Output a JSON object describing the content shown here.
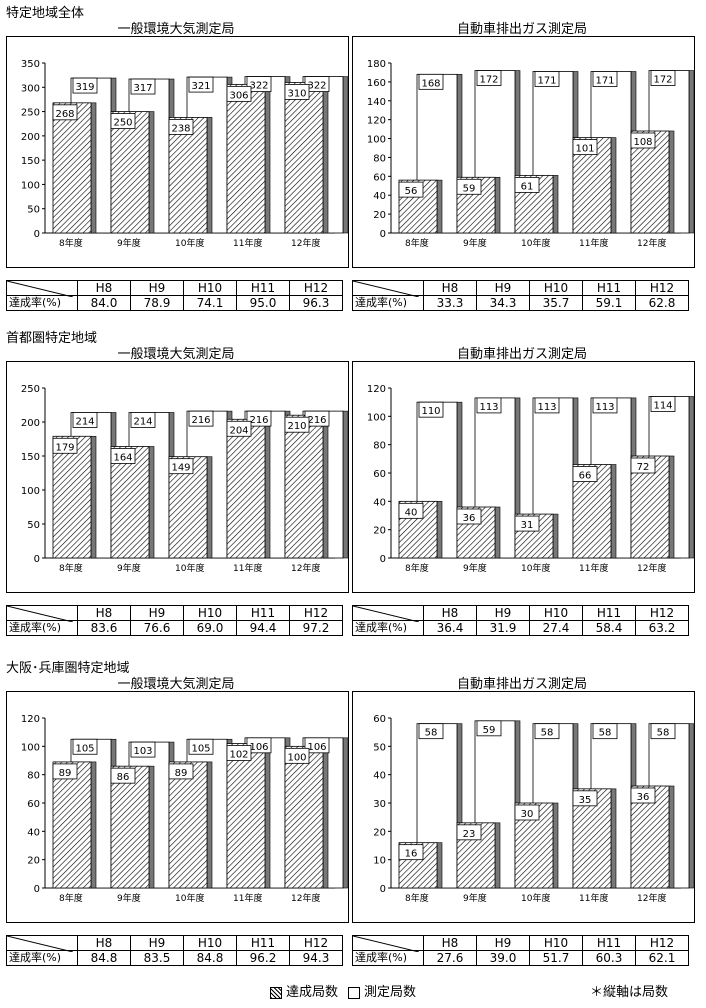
{
  "regions": [
    {
      "title": "特定地域全体",
      "panels": [
        {
          "title": "一般環境大気測定局",
          "ymax": 350,
          "ystep": 50,
          "categories": [
            "8年度",
            "9年度",
            "10年度",
            "11年度",
            "12年度"
          ],
          "achieved": [
            268,
            250,
            238,
            306,
            310
          ],
          "measured": [
            319,
            317,
            321,
            322,
            322
          ]
        },
        {
          "title": "自動車排出ガス測定局",
          "ymax": 180,
          "ystep": 20,
          "categories": [
            "8年度",
            "9年度",
            "10年度",
            "11年度",
            "12年度"
          ],
          "achieved": [
            56,
            59,
            61,
            101,
            108
          ],
          "measured": [
            168,
            172,
            171,
            171,
            172
          ]
        }
      ],
      "tables": [
        {
          "header": [
            "H8",
            "H9",
            "H10",
            "H11",
            "H12"
          ],
          "label": "達成率(%)",
          "values": [
            "84.0",
            "78.9",
            "74.1",
            "95.0",
            "96.3"
          ]
        },
        {
          "header": [
            "H8",
            "H9",
            "H10",
            "H11",
            "H12"
          ],
          "label": "達成率(%)",
          "values": [
            "33.3",
            "34.3",
            "35.7",
            "59.1",
            "62.8"
          ]
        }
      ]
    },
    {
      "title": "首都圏特定地域",
      "panels": [
        {
          "title": "一般環境大気測定局",
          "ymax": 250,
          "ystep": 50,
          "categories": [
            "8年度",
            "9年度",
            "10年度",
            "11年度",
            "12年度"
          ],
          "achieved": [
            179,
            164,
            149,
            204,
            210
          ],
          "measured": [
            214,
            214,
            216,
            216,
            216
          ]
        },
        {
          "title": "自動車排出ガス測定局",
          "ymax": 120,
          "ystep": 20,
          "categories": [
            "8年度",
            "9年度",
            "10年度",
            "11年度",
            "12年度"
          ],
          "achieved": [
            40,
            36,
            31,
            66,
            72
          ],
          "measured": [
            110,
            113,
            113,
            113,
            114
          ]
        }
      ],
      "tables": [
        {
          "header": [
            "H8",
            "H9",
            "H10",
            "H11",
            "H12"
          ],
          "label": "達成率(%)",
          "values": [
            "83.6",
            "76.6",
            "69.0",
            "94.4",
            "97.2"
          ]
        },
        {
          "header": [
            "H8",
            "H9",
            "H10",
            "H11",
            "H12"
          ],
          "label": "達成率(%)",
          "values": [
            "36.4",
            "31.9",
            "27.4",
            "58.4",
            "63.2"
          ]
        }
      ]
    },
    {
      "title": "大阪･兵庫圏特定地域",
      "panels": [
        {
          "title": "一般環境大気測定局",
          "ymax": 120,
          "ystep": 20,
          "categories": [
            "8年度",
            "9年度",
            "10年度",
            "11年度",
            "12年度"
          ],
          "achieved": [
            89,
            86,
            89,
            102,
            100
          ],
          "measured": [
            105,
            103,
            105,
            106,
            106
          ]
        },
        {
          "title": "自動車排出ガス測定局",
          "ymax": 60,
          "ystep": 10,
          "categories": [
            "8年度",
            "9年度",
            "10年度",
            "11年度",
            "12年度"
          ],
          "achieved": [
            16,
            23,
            30,
            35,
            36
          ],
          "measured": [
            58,
            59,
            58,
            58,
            58
          ]
        }
      ],
      "tables": [
        {
          "header": [
            "H8",
            "H9",
            "H10",
            "H11",
            "H12"
          ],
          "label": "達成率(%)",
          "values": [
            "84.8",
            "83.5",
            "84.8",
            "96.2",
            "94.3"
          ]
        },
        {
          "header": [
            "H8",
            "H9",
            "H10",
            "H11",
            "H12"
          ],
          "label": "達成率(%)",
          "values": [
            "27.6",
            "39.0",
            "51.7",
            "60.3",
            "62.1"
          ]
        }
      ]
    }
  ],
  "legend": {
    "achieved": "達成局数",
    "measured": "測定局数"
  },
  "note": "＊縦軸は局数",
  "chart_data": [
    {
      "type": "bar",
      "title": "一般環境大気測定局",
      "categories": [
        "8年度",
        "9年度",
        "10年度",
        "11年度",
        "12年度"
      ],
      "ylim": [
        0,
        350
      ],
      "series": [
        {
          "name": "達成局数",
          "values": [
            268,
            250,
            238,
            306,
            310
          ]
        },
        {
          "name": "測定局数",
          "values": [
            319,
            317,
            321,
            322,
            322
          ]
        }
      ]
    },
    {
      "type": "bar",
      "title": "自動車排出ガス測定局",
      "categories": [
        "8年度",
        "9年度",
        "10年度",
        "11年度",
        "12年度"
      ],
      "ylim": [
        0,
        180
      ],
      "series": [
        {
          "name": "達成局数",
          "values": [
            56,
            59,
            61,
            101,
            108
          ]
        },
        {
          "name": "測定局数",
          "values": [
            168,
            172,
            171,
            171,
            172
          ]
        }
      ]
    },
    {
      "type": "bar",
      "title": "一般環境大気測定局",
      "categories": [
        "8年度",
        "9年度",
        "10年度",
        "11年度",
        "12年度"
      ],
      "ylim": [
        0,
        250
      ],
      "series": [
        {
          "name": "達成局数",
          "values": [
            179,
            164,
            149,
            204,
            210
          ]
        },
        {
          "name": "測定局数",
          "values": [
            214,
            214,
            216,
            216,
            216
          ]
        }
      ]
    },
    {
      "type": "bar",
      "title": "自動車排出ガス測定局",
      "categories": [
        "8年度",
        "9年度",
        "10年度",
        "11年度",
        "12年度"
      ],
      "ylim": [
        0,
        120
      ],
      "series": [
        {
          "name": "達成局数",
          "values": [
            40,
            36,
            31,
            66,
            72
          ]
        },
        {
          "name": "測定局数",
          "values": [
            110,
            113,
            113,
            113,
            114
          ]
        }
      ]
    },
    {
      "type": "bar",
      "title": "一般環境大気測定局",
      "categories": [
        "8年度",
        "9年度",
        "10年度",
        "11年度",
        "12年度"
      ],
      "ylim": [
        0,
        120
      ],
      "series": [
        {
          "name": "達成局数",
          "values": [
            89,
            86,
            89,
            102,
            100
          ]
        },
        {
          "name": "測定局数",
          "values": [
            105,
            103,
            105,
            106,
            106
          ]
        }
      ]
    },
    {
      "type": "bar",
      "title": "自動車排出ガス測定局",
      "categories": [
        "8年度",
        "9年度",
        "10年度",
        "11年度",
        "12年度"
      ],
      "ylim": [
        0,
        60
      ],
      "series": [
        {
          "name": "達成局数",
          "values": [
            16,
            23,
            30,
            35,
            36
          ]
        },
        {
          "name": "測定局数",
          "values": [
            58,
            59,
            58,
            58,
            58
          ]
        }
      ]
    }
  ]
}
